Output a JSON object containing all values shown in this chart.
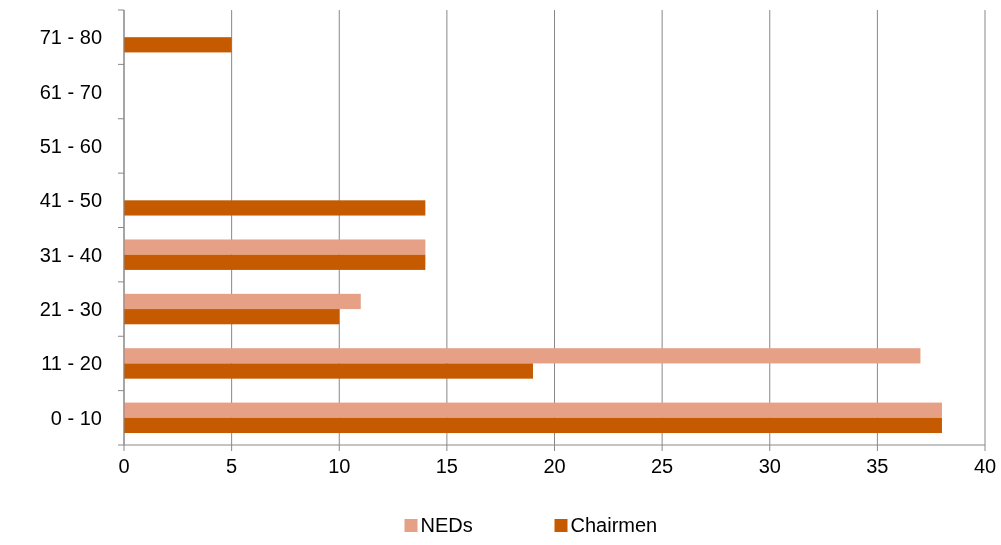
{
  "chart_data": {
    "type": "bar",
    "orientation": "horizontal",
    "categories": [
      "71 - 80",
      "61 - 70",
      "51 - 60",
      "41 - 50",
      "31 - 40",
      "21 - 30",
      "11 - 20",
      "0 - 10"
    ],
    "series": [
      {
        "name": "NEDs",
        "color": "#e6a086",
        "values": [
          0,
          0,
          0,
          0,
          14,
          11,
          37,
          38
        ]
      },
      {
        "name": "Chairmen",
        "color": "#c55a00",
        "values": [
          5,
          0,
          0,
          14,
          14,
          10,
          19,
          38
        ]
      }
    ],
    "xlim": [
      0,
      40
    ],
    "xticks": [
      0,
      5,
      10,
      15,
      20,
      25,
      30,
      35,
      40
    ],
    "grid": "x",
    "legend": "bottom"
  }
}
